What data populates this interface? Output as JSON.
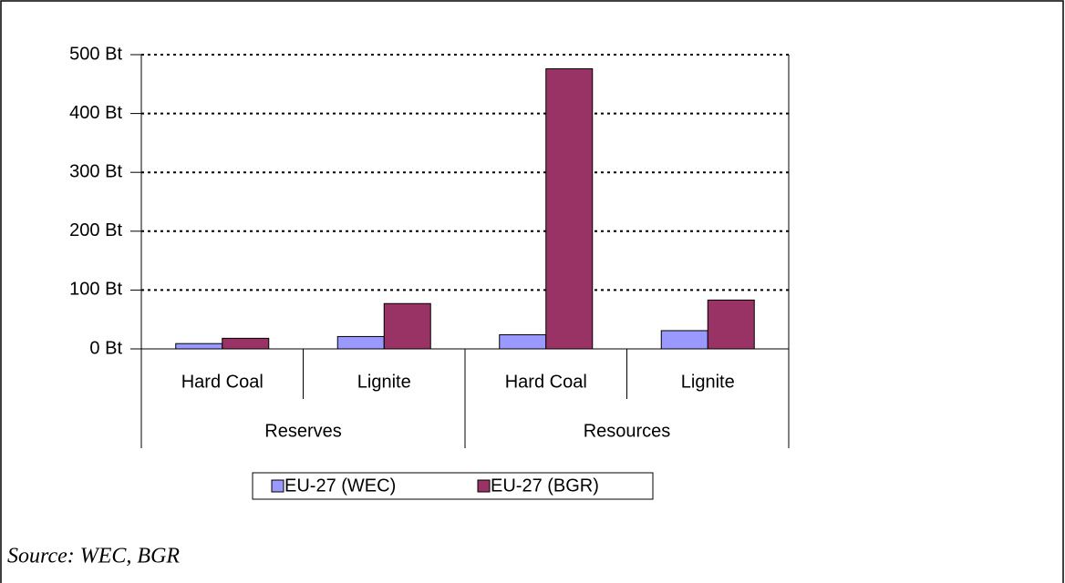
{
  "chart_data": {
    "type": "bar",
    "categories": [
      "Hard Coal",
      "Lignite",
      "Hard Coal",
      "Lignite"
    ],
    "category_groups": [
      "Reserves",
      "Resources"
    ],
    "series": [
      {
        "name": "EU-27 (WEC)",
        "color": "#9999ff",
        "values": [
          9,
          21,
          24,
          31
        ]
      },
      {
        "name": "EU-27 (BGR)",
        "color": "#993366",
        "values": [
          18,
          77,
          476,
          83
        ]
      }
    ],
    "ylim": [
      0,
      500
    ],
    "yticks": [
      {
        "value": 0,
        "label": "0 Bt"
      },
      {
        "value": 100,
        "label": "100 Bt"
      },
      {
        "value": 200,
        "label": "200 Bt"
      },
      {
        "value": 300,
        "label": "300 Bt"
      },
      {
        "value": 400,
        "label": "400 Bt"
      },
      {
        "value": 500,
        "label": "500 Bt"
      }
    ],
    "grid": true
  },
  "source": "Source: WEC, BGR"
}
